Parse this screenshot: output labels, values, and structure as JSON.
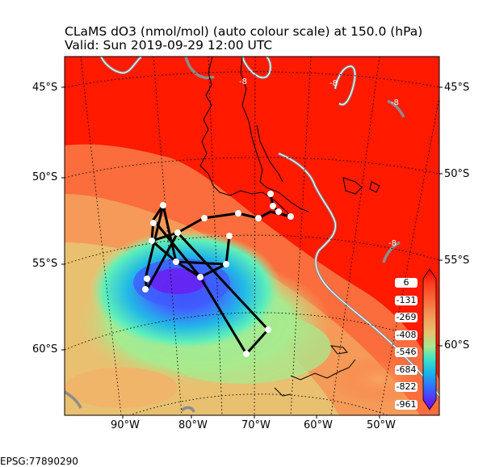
{
  "title": {
    "line1": "CLaMS dO3 (nmol/mol) (auto colour scale) at 150.0 (hPa)",
    "line2": "Valid: Sun 2019-09-29 12:00 UTC"
  },
  "lat_labels_left": [
    "45°S",
    "50°S",
    "55°S",
    "60°S"
  ],
  "lat_labels_right": [
    "45°S",
    "50°S",
    "55°S",
    "60°S"
  ],
  "lon_labels": [
    "90°W",
    "80°W",
    "70°W",
    "60°W",
    "50°W"
  ],
  "colorbar": {
    "labels": [
      "6",
      "-131",
      "-269",
      "-408",
      "-546",
      "-684",
      "-822",
      "-961"
    ],
    "colors": [
      "#ff0000",
      "#ff3b1e",
      "#fb6a3a",
      "#f59a58",
      "#e8c070",
      "#c8e07e",
      "#86f2a8",
      "#3ee2c8",
      "#1ab2e6",
      "#3070ff",
      "#5a2cf2",
      "#8000ff"
    ]
  },
  "footer": {
    "epsg": "EPSG:77890290"
  },
  "contour_labels": [
    "-8",
    "-8",
    "-8",
    "-8"
  ],
  "colors": {
    "field_high": "#ff1a00",
    "field_mid": "#fb6d3c",
    "field_low": "#f3b269",
    "field_min": "#5b2ef0",
    "land": "#000000",
    "graticule": "#000000",
    "flight_track": "#000000",
    "waypoint": "#ffffff",
    "contour": "#8c8c8c"
  }
}
